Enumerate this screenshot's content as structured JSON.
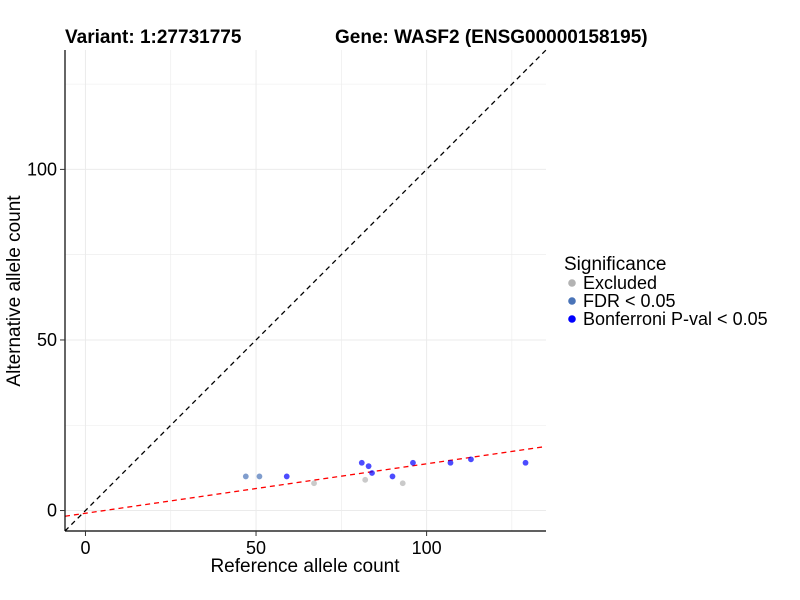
{
  "chart_data": {
    "type": "scatter",
    "title_left": "Variant: 1:27731775",
    "title_right": "Gene: WASF2 (ENSG00000158195)",
    "xlabel": "Reference allele count",
    "ylabel": "Alternative allele count",
    "xlim": [
      -6,
      135
    ],
    "ylim": [
      -6,
      135
    ],
    "xticks": [
      0,
      50,
      100
    ],
    "yticks": [
      0,
      50,
      100
    ],
    "grid": true,
    "legend": {
      "title": "Significance",
      "placement": "right",
      "entries": [
        {
          "key": "excluded",
          "label": "Excluded",
          "color": "#b3b3b3"
        },
        {
          "key": "fdr",
          "label": "FDR < 0.05",
          "color": "#4a74b8"
        },
        {
          "key": "bonf",
          "label": "Bonferroni P-val < 0.05",
          "color": "#0000ff"
        }
      ]
    },
    "reference_lines": [
      {
        "kind": "identity",
        "slope": 1,
        "intercept": 0,
        "color": "#000000",
        "style": "dashed"
      },
      {
        "kind": "fit",
        "slope": 0.145,
        "intercept": -0.8,
        "color": "#ff0000",
        "style": "dashed"
      }
    ],
    "points": [
      {
        "x": 47,
        "y": 10,
        "group": "fdr"
      },
      {
        "x": 51,
        "y": 10,
        "group": "fdr"
      },
      {
        "x": 59,
        "y": 10,
        "group": "bonf"
      },
      {
        "x": 67,
        "y": 8,
        "group": "excluded"
      },
      {
        "x": 81,
        "y": 14,
        "group": "bonf"
      },
      {
        "x": 82,
        "y": 9,
        "group": "excluded"
      },
      {
        "x": 83,
        "y": 13,
        "group": "bonf"
      },
      {
        "x": 84,
        "y": 11,
        "group": "bonf"
      },
      {
        "x": 90,
        "y": 10,
        "group": "bonf"
      },
      {
        "x": 93,
        "y": 8,
        "group": "excluded"
      },
      {
        "x": 96,
        "y": 14,
        "group": "bonf"
      },
      {
        "x": 107,
        "y": 14,
        "group": "bonf"
      },
      {
        "x": 113,
        "y": 15,
        "group": "bonf"
      },
      {
        "x": 129,
        "y": 14,
        "group": "bonf"
      }
    ]
  }
}
